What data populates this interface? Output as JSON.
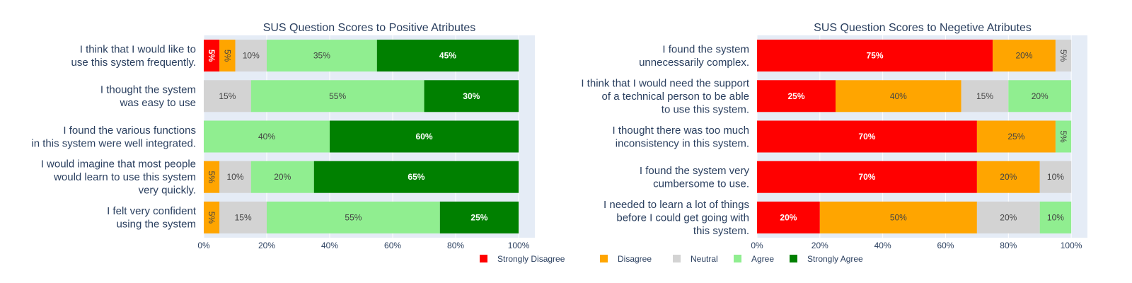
{
  "colors": {
    "Strongly Disagree": "#ff0000",
    "Disagree": "#ffa500",
    "Neutral": "#d3d3d3",
    "Agree": "#90ee90",
    "Strongly Agree": "#008000",
    "plot_bg": "#e5ecf6",
    "text": "#2a3f5f"
  },
  "legend": {
    "placement": "bottom-center",
    "items": [
      "Strongly Disagree",
      "Disagree",
      "Neutral",
      "Agree",
      "Strongly Agree"
    ]
  },
  "chart_data": [
    {
      "type": "bar",
      "orientation": "horizontal-stacked",
      "title": "SUS Question Scores to Positive Atributes",
      "xlim": [
        0,
        100
      ],
      "x_ticks": [
        "0%",
        "20%",
        "40%",
        "60%",
        "80%",
        "100%"
      ],
      "categories": [
        [
          "I think that I would like to",
          "use this system frequently."
        ],
        [
          "I thought the system",
          "was easy to use"
        ],
        [
          "I found the various functions",
          "in this system were well integrated."
        ],
        [
          "I would imagine that most people",
          "would learn to use this system",
          "very quickly."
        ],
        [
          "I felt very confident",
          "using the system"
        ]
      ],
      "series": [
        {
          "name": "Strongly Disagree",
          "values": [
            5,
            0,
            0,
            0,
            0
          ]
        },
        {
          "name": "Disagree",
          "values": [
            5,
            0,
            0,
            5,
            5
          ]
        },
        {
          "name": "Neutral",
          "values": [
            10,
            15,
            0,
            10,
            15
          ]
        },
        {
          "name": "Agree",
          "values": [
            35,
            55,
            40,
            20,
            55
          ]
        },
        {
          "name": "Strongly Agree",
          "values": [
            45,
            30,
            60,
            65,
            25
          ]
        }
      ]
    },
    {
      "type": "bar",
      "orientation": "horizontal-stacked",
      "title": "SUS Question Scores to Negetive Atributes",
      "xlim": [
        0,
        100
      ],
      "x_ticks": [
        "0%",
        "20%",
        "40%",
        "60%",
        "80%",
        "100%"
      ],
      "categories": [
        [
          "I found the system",
          "unnecessarily complex."
        ],
        [
          "I think that I would need the support",
          "of a technical person to be able",
          "to use this system."
        ],
        [
          "I thought there was too much",
          "inconsistency in this system."
        ],
        [
          "I found the system very",
          "cumbersome to use."
        ],
        [
          "I needed to learn a lot of things",
          "before I could get going with",
          "this system."
        ]
      ],
      "series": [
        {
          "name": "Strongly Disagree",
          "values": [
            75,
            25,
            70,
            70,
            20
          ]
        },
        {
          "name": "Disagree",
          "values": [
            20,
            40,
            25,
            20,
            50
          ]
        },
        {
          "name": "Neutral",
          "values": [
            5,
            15,
            0,
            10,
            20
          ]
        },
        {
          "name": "Agree",
          "values": [
            0,
            20,
            5,
            0,
            10
          ]
        },
        {
          "name": "Strongly Agree",
          "values": [
            0,
            0,
            0,
            0,
            0
          ]
        }
      ]
    }
  ]
}
